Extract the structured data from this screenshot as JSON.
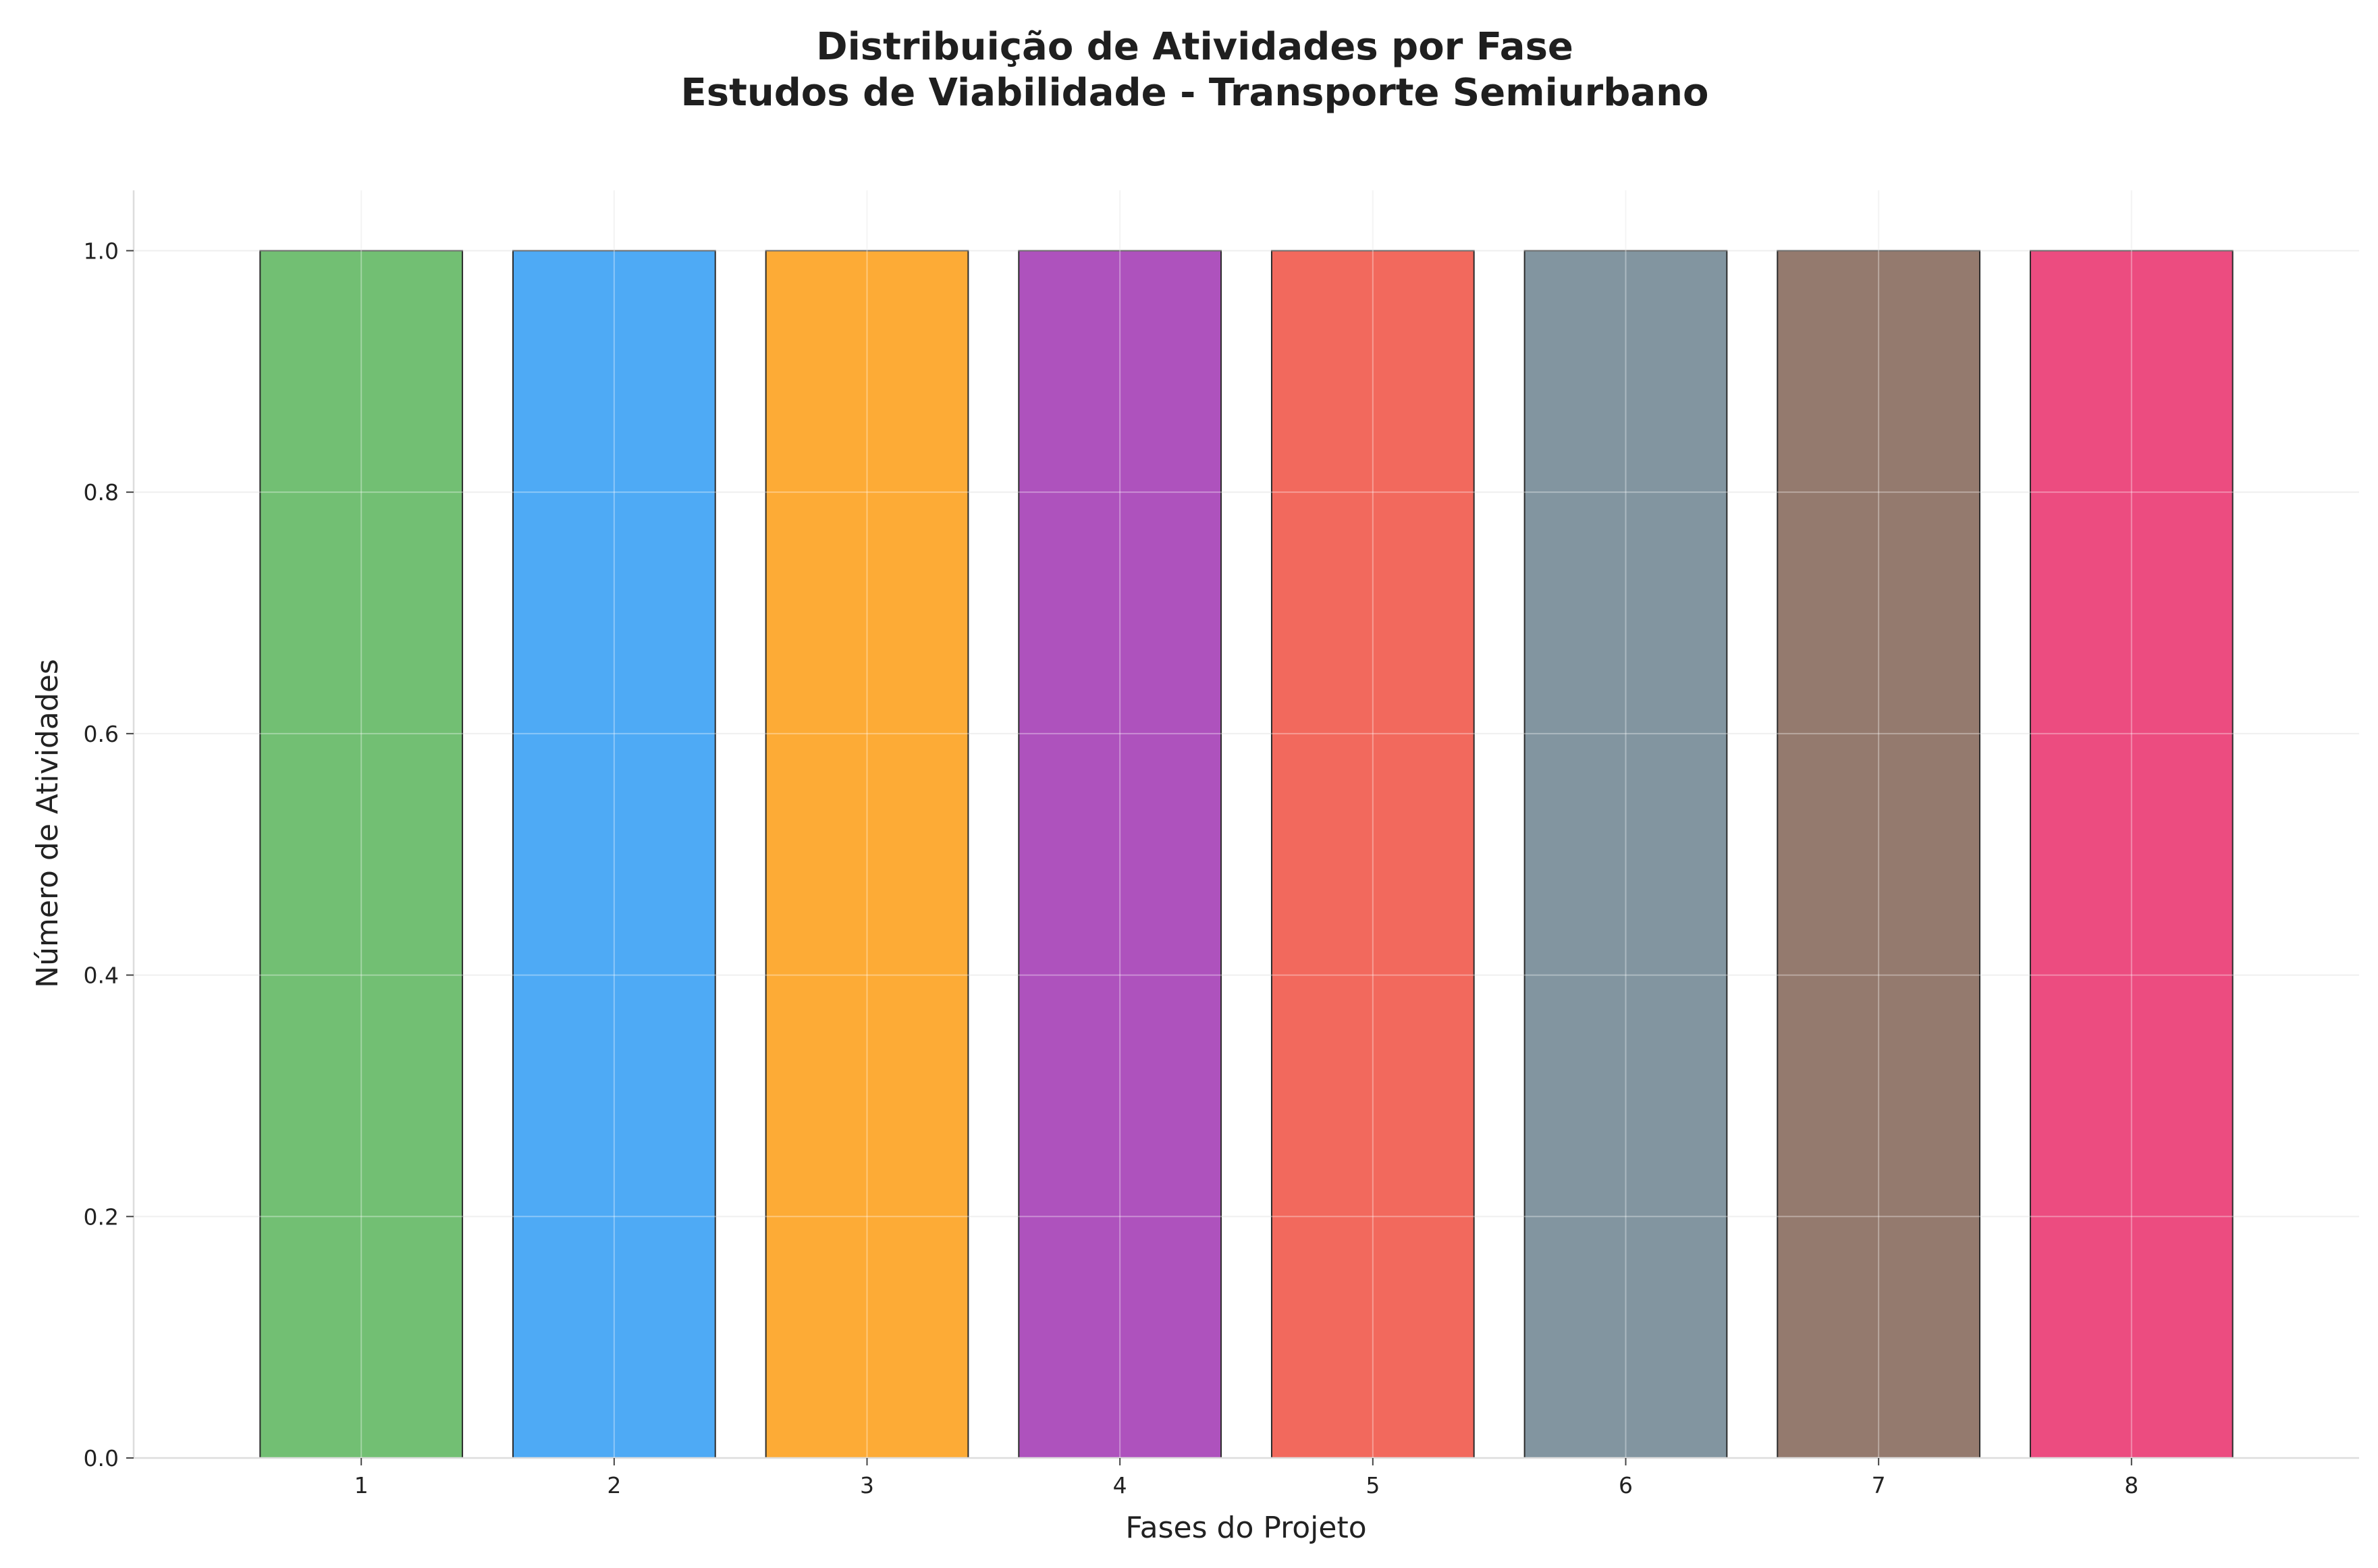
{
  "chart_data": {
    "type": "bar",
    "title": "Distribuição de Atividades por Fase",
    "subtitle": "Estudos de Viabilidade - Transporte Semiurbano",
    "xlabel": "Fases do Projeto",
    "ylabel": "Número de Atividades",
    "categories": [
      "1",
      "2",
      "3",
      "4",
      "5",
      "6",
      "7",
      "8"
    ],
    "values": [
      1,
      1,
      1,
      1,
      1,
      1,
      1,
      1
    ],
    "colors": [
      "#72bf73",
      "#4eaaf5",
      "#fdab36",
      "#ae52bd",
      "#f2695d",
      "#8295a0",
      "#947a6e",
      "#ec4c80"
    ],
    "ylim": [
      0,
      1.05
    ],
    "yticks": [
      0.0,
      0.2,
      0.4,
      0.6,
      0.8,
      1.0
    ],
    "ytick_labels": [
      "0.0",
      "0.2",
      "0.4",
      "0.6",
      "0.8",
      "1.0"
    ],
    "grid": true,
    "legend": "none"
  }
}
